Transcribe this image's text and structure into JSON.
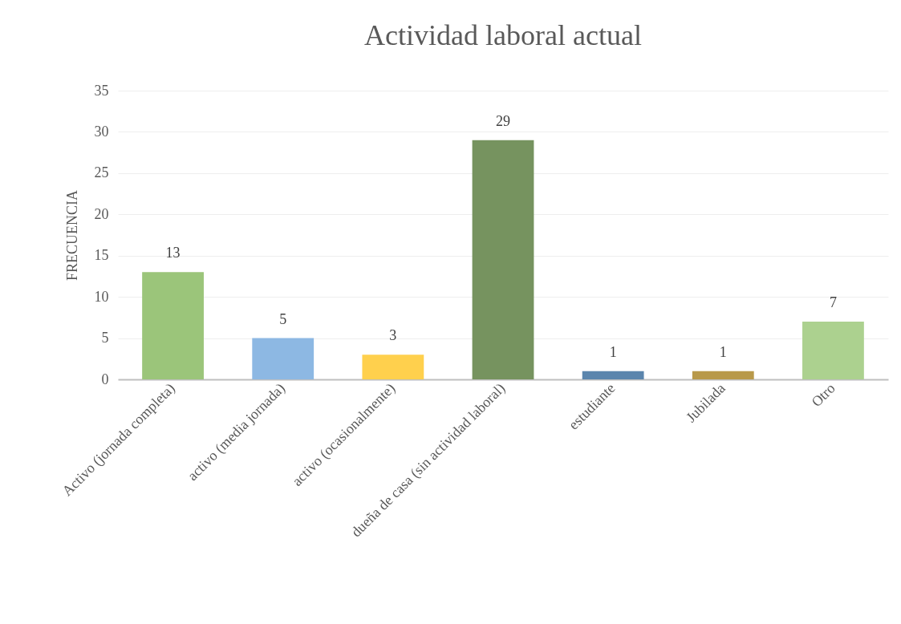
{
  "chart_data": {
    "type": "bar",
    "title": "Actividad laboral actual",
    "ylabel": "FRECUENCIA",
    "categories": [
      "Activo (jornada completa)",
      "activo (media jornada)",
      "activo (ocasionalmente)",
      "dueña de casa (sin actividad laboral)",
      "estudiante",
      "Jubilada",
      "Otro"
    ],
    "values": [
      13,
      5,
      3,
      29,
      1,
      1,
      7
    ],
    "colors": [
      "#9bc57a",
      "#8db8e3",
      "#ffd04d",
      "#76935f",
      "#5b85ad",
      "#b8994a",
      "#acd18f"
    ],
    "ylim": [
      0,
      35
    ],
    "yticks": [
      0,
      5,
      10,
      15,
      20,
      25,
      30,
      35
    ],
    "grid": "y",
    "data_labels": true
  }
}
